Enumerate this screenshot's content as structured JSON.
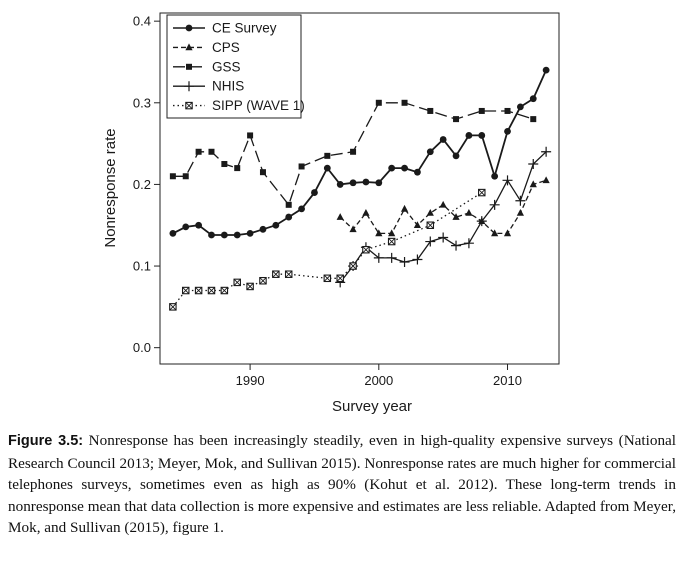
{
  "chart_data": {
    "type": "line",
    "xlabel": "Survey year",
    "ylabel": "Nonresponse rate",
    "xlim": [
      1983,
      2014
    ],
    "ylim": [
      -0.02,
      0.41
    ],
    "x_ticks": [
      1990,
      2000,
      2010
    ],
    "y_ticks": [
      0.0,
      0.1,
      0.2,
      0.3,
      0.4
    ],
    "y_tick_labels": [
      "0.0",
      "0.1",
      "0.2",
      "0.3",
      "0.4"
    ],
    "grid": false,
    "legend_position": "top-left",
    "series": [
      {
        "name": "CE Survey",
        "line": "solid",
        "marker": "circle",
        "x": [
          1984,
          1985,
          1986,
          1987,
          1988,
          1989,
          1990,
          1991,
          1992,
          1993,
          1994,
          1995,
          1996,
          1997,
          1998,
          1999,
          2000,
          2001,
          2002,
          2003,
          2004,
          2005,
          2006,
          2007,
          2008,
          2009,
          2010,
          2011,
          2012,
          2013
        ],
        "y": [
          0.14,
          0.148,
          0.15,
          0.138,
          0.138,
          0.138,
          0.14,
          0.145,
          0.15,
          0.16,
          0.17,
          0.19,
          0.22,
          0.2,
          0.202,
          0.203,
          0.202,
          0.22,
          0.22,
          0.215,
          0.24,
          0.255,
          0.235,
          0.26,
          0.26,
          0.21,
          0.265,
          0.295,
          0.305,
          0.34
        ]
      },
      {
        "name": "CPS",
        "line": "dashed",
        "marker": "triangle",
        "x": [
          1997,
          1998,
          1999,
          2000,
          2001,
          2002,
          2003,
          2004,
          2005,
          2006,
          2007,
          2008,
          2009,
          2010,
          2011,
          2012,
          2013
        ],
        "y": [
          0.16,
          0.145,
          0.165,
          0.14,
          0.14,
          0.17,
          0.15,
          0.165,
          0.175,
          0.16,
          0.165,
          0.155,
          0.14,
          0.14,
          0.165,
          0.2,
          0.205
        ]
      },
      {
        "name": "GSS",
        "line": "longdash",
        "marker": "square",
        "x": [
          1984,
          1985,
          1986,
          1987,
          1988,
          1989,
          1990,
          1991,
          1993,
          1994,
          1996,
          1998,
          2000,
          2002,
          2004,
          2006,
          2008,
          2010,
          2012
        ],
        "y": [
          0.21,
          0.21,
          0.24,
          0.24,
          0.225,
          0.22,
          0.26,
          0.215,
          0.175,
          0.222,
          0.235,
          0.24,
          0.3,
          0.3,
          0.29,
          0.28,
          0.29,
          0.29,
          0.28
        ]
      },
      {
        "name": "NHIS",
        "line": "solid",
        "marker": "plus",
        "x": [
          1997,
          1998,
          1999,
          2000,
          2001,
          2002,
          2003,
          2004,
          2005,
          2006,
          2007,
          2008,
          2009,
          2010,
          2011,
          2012,
          2013
        ],
        "y": [
          0.08,
          0.1,
          0.123,
          0.11,
          0.11,
          0.105,
          0.108,
          0.13,
          0.135,
          0.125,
          0.128,
          0.155,
          0.175,
          0.205,
          0.18,
          0.225,
          0.24
        ]
      },
      {
        "name": "SIPP (WAVE 1)",
        "line": "dotted",
        "marker": "crossed-square",
        "x": [
          1984,
          1985,
          1986,
          1987,
          1988,
          1989,
          1990,
          1991,
          1992,
          1993,
          1996,
          1997,
          1998,
          1999,
          2001,
          2004,
          2008
        ],
        "y": [
          0.05,
          0.07,
          0.07,
          0.07,
          0.07,
          0.08,
          0.075,
          0.082,
          0.09,
          0.09,
          0.085,
          0.085,
          0.1,
          0.12,
          0.13,
          0.15,
          0.19
        ]
      }
    ]
  },
  "caption": {
    "label": "Figure 3.5:",
    "text": "Nonresponse has been increasingly steadily, even in high-quality expensive surveys (National Research Council 2013; Meyer, Mok, and Sullivan 2015). Nonresponse rates are much higher for commercial telephones surveys, sometimes even as high as 90% (Kohut et al. 2012). These long-term trends in nonresponse mean that data collection is more expensive and estimates are less reliable. Adapted from Meyer, Mok, and Sullivan (2015), figure 1."
  }
}
